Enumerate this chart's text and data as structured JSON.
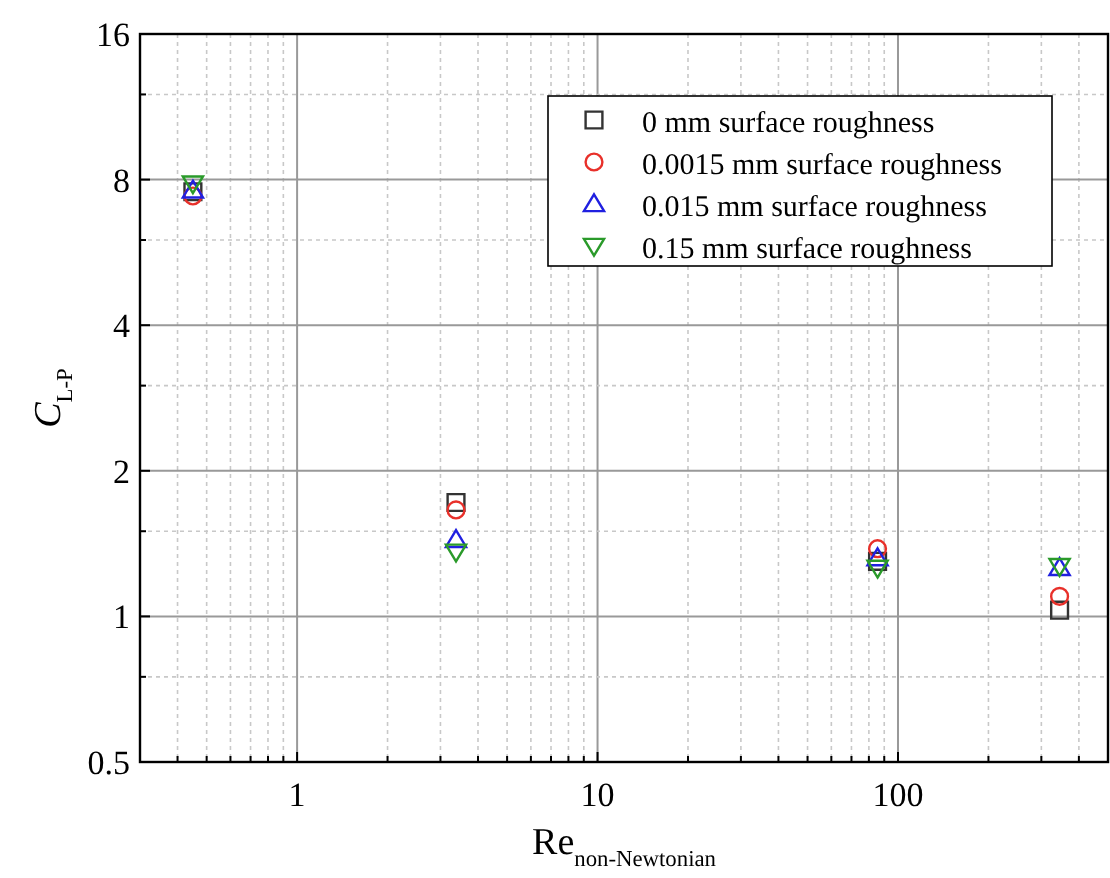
{
  "chart_data": {
    "type": "scatter",
    "xlabel": "Re$_{non-Newtonian}$",
    "ylabel": "C$_{L-P}$",
    "log": "xy",
    "grid": true,
    "legend": "top right",
    "x": [
      0.45,
      3.38,
      85.5,
      345
    ],
    "xlim": [
      0.3,
      500
    ],
    "xticks": [
      {
        "value": 0.3,
        "label": null
      },
      {
        "value": 0.4,
        "label": null
      },
      {
        "value": 0.5,
        "label": null
      },
      {
        "value": 0.6,
        "label": null
      },
      {
        "value": 0.7,
        "label": null
      },
      {
        "value": 0.8,
        "label": null
      },
      {
        "value": 0.9,
        "label": null
      },
      1,
      {
        "value": 2,
        "label": null
      },
      {
        "value": 3,
        "label": null
      },
      {
        "value": 4,
        "label": null
      },
      {
        "value": 5,
        "label": null
      },
      {
        "value": 6,
        "label": null
      },
      {
        "value": 7,
        "label": null
      },
      {
        "value": 8,
        "label": null
      },
      {
        "value": 9,
        "label": null
      },
      10,
      {
        "value": 20,
        "label": null
      },
      {
        "value": 30,
        "label": null
      },
      {
        "value": 40,
        "label": null
      },
      {
        "value": 50,
        "label": null
      },
      {
        "value": 60,
        "label": null
      },
      {
        "value": 70,
        "label": null
      },
      {
        "value": 80,
        "label": null
      },
      {
        "value": 90,
        "label": null
      },
      100,
      {
        "value": 200,
        "label": null
      },
      {
        "value": 300,
        "label": null
      },
      {
        "value": 400,
        "label": null
      },
      {
        "value": 500,
        "label": null
      }
    ],
    "ylim": [
      0.5,
      16
    ],
    "yticks": [
      0.5,
      {
        "value": 0.75,
        "label": null
      },
      1,
      {
        "value": 1.5,
        "label": null
      },
      2,
      {
        "value": 3,
        "label": null
      },
      4,
      {
        "value": 6,
        "label": null
      },
      8,
      {
        "value": 12,
        "label": null
      },
      16
    ],
    "series": [
      {
        "name": "0 mm surface roughness",
        "color": "#333333",
        "marker": "square",
        "values": [
          7.55,
          1.72,
          1.3,
          1.03
        ]
      },
      {
        "name": "0.0015 mm surface roughness",
        "color": "#e8302a",
        "marker": "circle",
        "values": [
          7.4,
          1.66,
          1.38,
          1.1
        ]
      },
      {
        "name": "0.015 mm surface roughness",
        "color": "#2020e0",
        "marker": "triangle",
        "values": [
          7.6,
          1.44,
          1.32,
          1.26
        ]
      },
      {
        "name": "0.15 mm surface roughness",
        "color": "#2a9a2a",
        "marker": "triangle-down",
        "values": [
          7.85,
          1.36,
          1.26,
          1.27
        ]
      }
    ]
  }
}
